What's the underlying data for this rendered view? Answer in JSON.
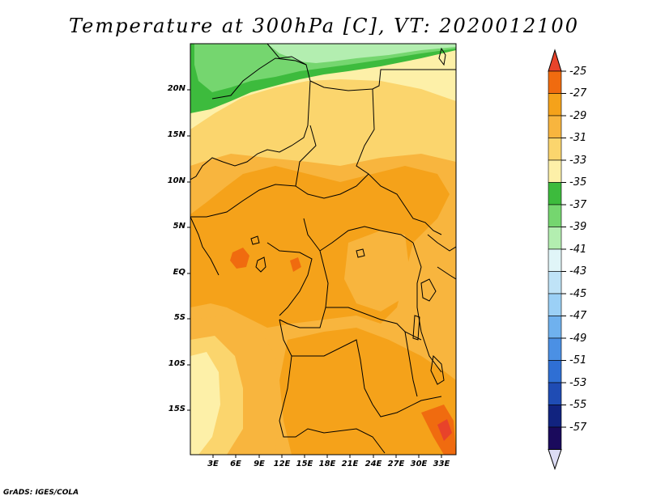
{
  "title": "Temperature at 300hPa [C], VT: 2020012100",
  "footer": "GrADS: IGES/COLA",
  "map": {
    "region": "Central Africa",
    "lat_labels": [
      "20N",
      "15N",
      "10N",
      "5N",
      "EQ",
      "5S",
      "10S",
      "15S"
    ],
    "lon_labels": [
      "3E",
      "6E",
      "9E",
      "12E",
      "15E",
      "18E",
      "21E",
      "24E",
      "27E",
      "30E",
      "33E"
    ]
  },
  "colorbar": {
    "unit": "C",
    "labels": [
      "-25",
      "-27",
      "-29",
      "-31",
      "-33",
      "-35",
      "-37",
      "-39",
      "-41",
      "-43",
      "-45",
      "-47",
      "-49",
      "-51",
      "-53",
      "-55",
      "-57"
    ],
    "colors": [
      "#e8432a",
      "#f06b0f",
      "#f5a21a",
      "#f8b53e",
      "#fbd56d",
      "#fdf0a8",
      "#3dbb3d",
      "#75d66f",
      "#b3eeb0",
      "#e0f5f8",
      "#bfe3f7",
      "#9bd0f6",
      "#6fb1ee",
      "#4b90e4",
      "#2f6fd4",
      "#1f4cb4",
      "#11237f",
      "#1a0a5c",
      "#dcdcf4"
    ]
  }
}
